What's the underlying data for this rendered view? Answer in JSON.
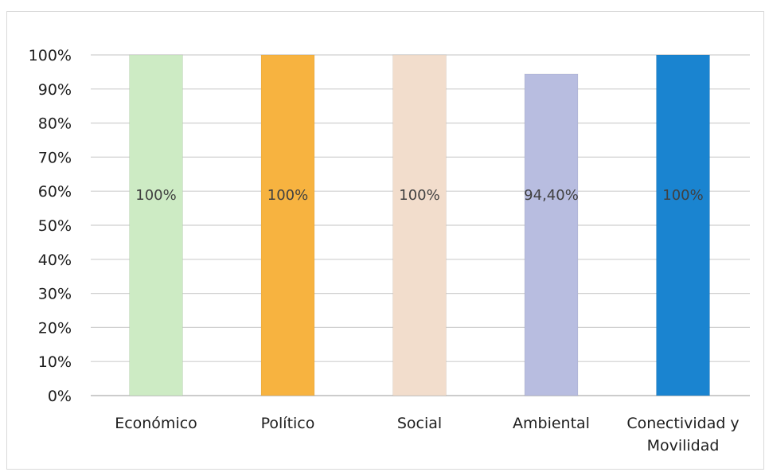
{
  "chart_data": {
    "type": "bar",
    "categories": [
      "Económico",
      "Político",
      "Social",
      "Ambiental",
      "Conectividad y Movilidad"
    ],
    "category_lines": [
      [
        "Económico"
      ],
      [
        "Político"
      ],
      [
        "Social"
      ],
      [
        "Ambiental"
      ],
      [
        "Conectividad y",
        "Movilidad"
      ]
    ],
    "values": [
      100,
      100,
      100,
      94.4,
      100
    ],
    "data_labels": [
      "100%",
      "100%",
      "100%",
      "94,40%",
      "100%"
    ],
    "colors": [
      "#cdebc4",
      "#f7b340",
      "#f2ddcc",
      "#b8bde0",
      "#1a84d0"
    ],
    "ylim": [
      0,
      100
    ],
    "yticks": [
      0,
      10,
      20,
      30,
      40,
      50,
      60,
      70,
      80,
      90,
      100
    ],
    "ytick_labels": [
      "0%",
      "10%",
      "20%",
      "30%",
      "40%",
      "50%",
      "60%",
      "70%",
      "80%",
      "90%",
      "100%"
    ],
    "grid": true,
    "title": "",
    "xlabel": "",
    "ylabel": ""
  }
}
